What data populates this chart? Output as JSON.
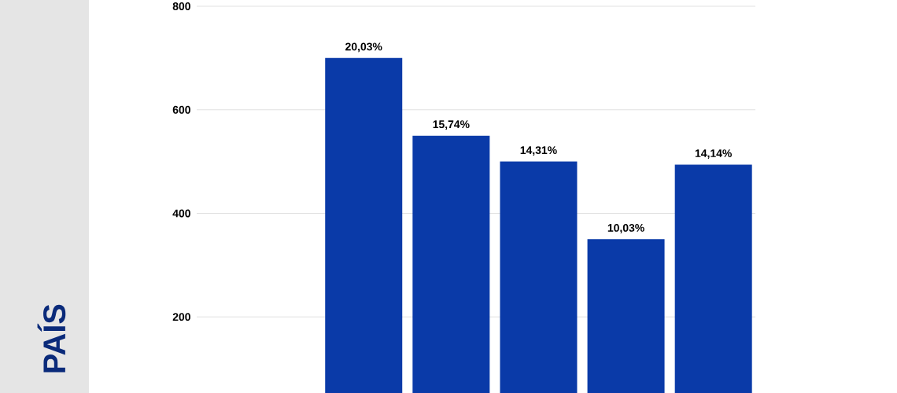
{
  "chart_data": {
    "type": "bar",
    "ylabel": "PAÍS",
    "categories": [
      null,
      null,
      null,
      null,
      null,
      null
    ],
    "values": [
      null,
      700,
      550,
      500,
      350,
      494
    ],
    "annotations": [
      "20,03%",
      "15,74%",
      "14,31%",
      "10,03%",
      "14,14%"
    ],
    "color": "#0a3aa8",
    "ylim": [
      53,
      800
    ],
    "yticks": [
      200,
      400,
      600,
      800
    ],
    "grid": "y"
  }
}
